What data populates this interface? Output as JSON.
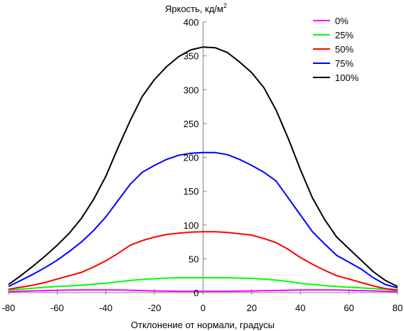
{
  "chart_data": {
    "type": "line",
    "ylabel": "Яркость, кд/м",
    "ylabel_sup": "2",
    "xlabel": "Отклонение от нормали, градусы",
    "xlim": [
      -80,
      80
    ],
    "ylim": [
      0,
      400
    ],
    "x_ticks": [
      "-80",
      "-60",
      "-40",
      "-20",
      "0",
      "20",
      "40",
      "60",
      "80"
    ],
    "y_ticks": [
      "0",
      "50",
      "100",
      "150",
      "200",
      "250",
      "300",
      "350",
      "400"
    ],
    "grid": false,
    "legend_position": "top-right",
    "x": [
      -80,
      -75,
      -70,
      -65,
      -60,
      -55,
      -50,
      -45,
      -40,
      -35,
      -30,
      -25,
      -20,
      -15,
      -10,
      -5,
      0,
      5,
      10,
      15,
      20,
      25,
      30,
      35,
      40,
      45,
      50,
      55,
      60,
      65,
      70,
      75,
      80
    ],
    "series": [
      {
        "name": "0%",
        "color": "#ff00ff",
        "values": [
          1.5,
          2,
          2.5,
          3,
          3.5,
          3.8,
          4,
          4,
          4,
          4,
          3.6,
          3,
          2.5,
          2.2,
          2,
          2,
          2,
          2,
          2,
          2.2,
          2.5,
          2.8,
          3.2,
          3.6,
          4,
          4,
          4,
          4,
          3.5,
          3,
          2.5,
          2,
          1.5
        ]
      },
      {
        "name": "25%",
        "color": "#00ff00",
        "values": [
          4,
          5,
          6.5,
          8,
          9,
          10,
          11,
          12.5,
          14,
          16,
          18,
          19.5,
          20.5,
          21.5,
          22,
          22,
          22,
          22,
          22,
          21.5,
          21,
          20,
          18.5,
          16.5,
          14,
          12,
          10.5,
          9,
          8,
          7,
          6,
          5,
          3
        ]
      },
      {
        "name": "50%",
        "color": "#ff0000",
        "values": [
          5,
          8,
          11,
          15,
          20,
          25,
          30,
          38,
          47,
          58,
          70,
          77,
          82,
          86,
          88,
          89.5,
          90,
          90,
          89,
          87,
          85,
          80,
          74,
          64,
          52,
          42,
          33,
          25,
          20,
          15,
          10,
          6,
          4
        ]
      },
      {
        "name": "75%",
        "color": "#0000ff",
        "values": [
          9,
          18,
          27,
          37,
          48,
          61,
          75,
          92,
          112,
          136,
          160,
          178,
          188,
          197,
          203,
          206,
          207,
          207,
          204,
          197,
          188,
          178,
          165,
          140,
          115,
          90,
          72,
          55,
          45,
          35,
          22,
          12,
          7
        ]
      },
      {
        "name": "100%",
        "color": "#000000",
        "values": [
          12,
          25,
          39,
          54,
          70,
          88,
          110,
          138,
          172,
          214,
          254,
          290,
          315,
          334,
          349,
          359,
          363,
          362,
          355,
          341,
          325,
          303,
          270,
          228,
          182,
          140,
          108,
          82,
          65,
          48,
          31,
          18,
          9
        ]
      }
    ]
  }
}
